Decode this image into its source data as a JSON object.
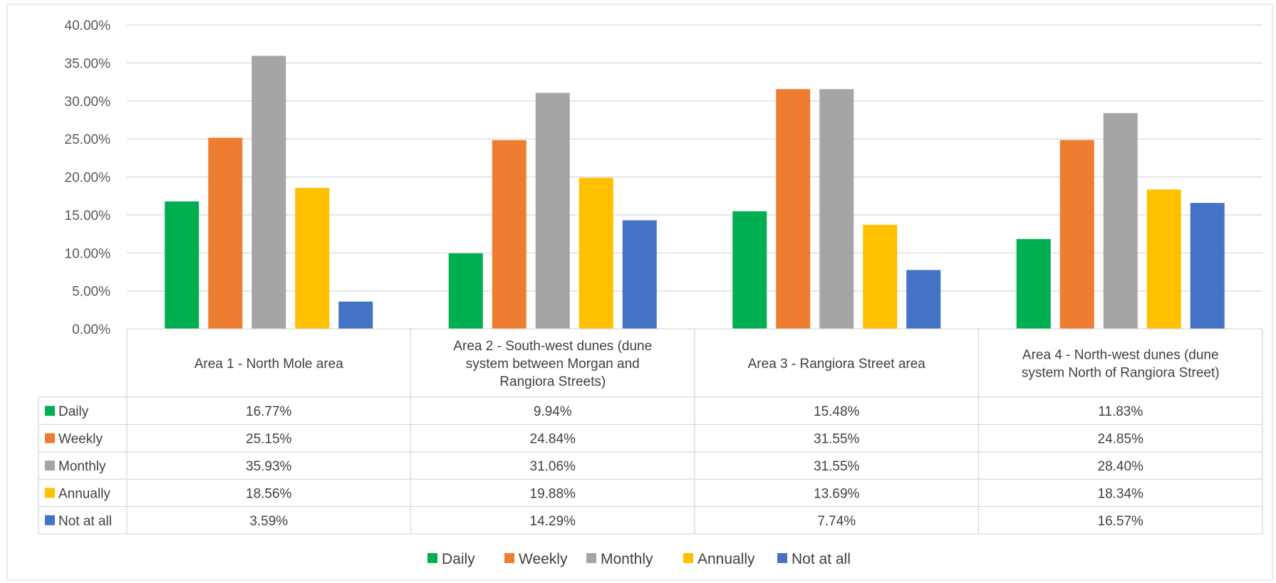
{
  "chart_data": {
    "type": "bar",
    "categories": [
      [
        "Area 1 - North Mole area"
      ],
      [
        "Area 2 - South-west dunes (dune",
        "system between Morgan and",
        "Rangiora Streets)"
      ],
      [
        "Area 3 - Rangiora Street area"
      ],
      [
        "Area 4 - North-west dunes (dune",
        "system North of Rangiora Street)"
      ]
    ],
    "series": [
      {
        "name": "Daily",
        "color": "#00B050",
        "values": [
          16.77,
          9.94,
          15.48,
          11.83
        ],
        "labels": [
          "16.77%",
          "9.94%",
          "15.48%",
          "11.83%"
        ]
      },
      {
        "name": "Weekly",
        "color": "#ED7D31",
        "values": [
          25.15,
          24.84,
          31.55,
          24.85
        ],
        "labels": [
          "25.15%",
          "24.84%",
          "31.55%",
          "24.85%"
        ]
      },
      {
        "name": "Monthly",
        "color": "#A5A5A5",
        "values": [
          35.93,
          31.06,
          31.55,
          28.4
        ],
        "labels": [
          "35.93%",
          "31.06%",
          "31.55%",
          "28.40%"
        ]
      },
      {
        "name": "Annually",
        "color": "#FFC000",
        "values": [
          18.56,
          19.88,
          13.69,
          18.34
        ],
        "labels": [
          "18.56%",
          "19.88%",
          "13.69%",
          "18.34%"
        ]
      },
      {
        "name": "Not at all",
        "color": "#4472C4",
        "values": [
          3.59,
          14.29,
          7.74,
          16.57
        ],
        "labels": [
          "3.59%",
          "14.29%",
          "7.74%",
          "16.57%"
        ]
      }
    ],
    "ylim": [
      0,
      40
    ],
    "yticks": [
      "0.00%",
      "5.00%",
      "10.00%",
      "15.00%",
      "20.00%",
      "25.00%",
      "30.00%",
      "35.00%",
      "40.00%"
    ],
    "grid": true,
    "legend_position": "bottom",
    "data_table": true
  }
}
